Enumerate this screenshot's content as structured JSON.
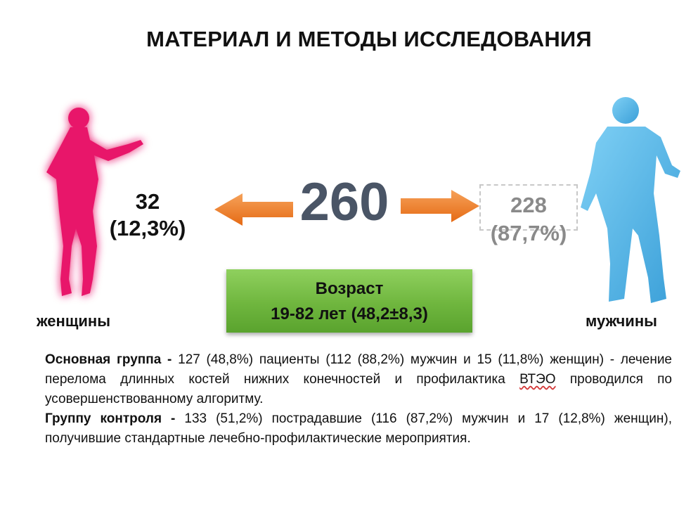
{
  "title": "МАТЕРИАЛ И МЕТОДЫ ИССЛЕДОВАНИЯ",
  "total": "260",
  "women": {
    "count": "32",
    "percent": "(12,3%)",
    "label": "женщины",
    "color": "#e8196b"
  },
  "men": {
    "count": "228",
    "percent": "(87,7%)",
    "label": "мужчины",
    "color": "#4fb4e6"
  },
  "age": {
    "title": "Возраст",
    "range": "19-82 лет (48,2±8,3)"
  },
  "arrow_color": "#ee7c2a",
  "description": {
    "main_label": "Основная группа -",
    "main_text_1": " 127 (48,8%) пациенты (112 (88,2%) мужчин и 15 (11,8%) женщин) - лечение перелома длинных костей нижних конечностей и профилактика ",
    "main_abbr": "ВТЭО",
    "main_text_2": " проводился по усовершенствованному алгоритму.",
    "control_label": "Группу контроля -",
    "control_text": " 133 (51,2%) пострадавшие (116 (87,2%) мужчин и 17 (12,8%) женщин), получившие стандартные лечебно-профилактические мероприятия."
  }
}
